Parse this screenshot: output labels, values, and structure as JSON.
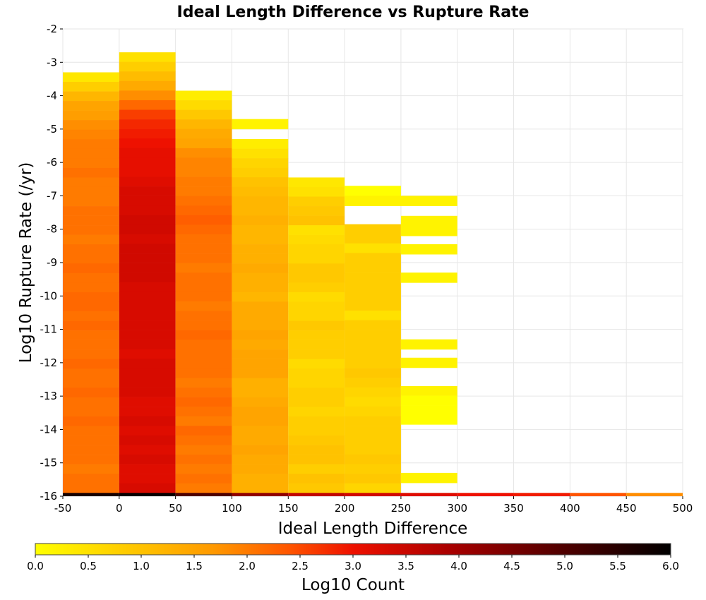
{
  "chart_data": {
    "type": "heatmap",
    "title": "Ideal Length Difference vs Rupture Rate",
    "xlabel": "Ideal Length Difference",
    "ylabel": "Log10 Rupture Rate (/yr)",
    "xlim": [
      -50,
      500
    ],
    "ylim": [
      -16,
      -2
    ],
    "x_ticks": [
      "-50",
      "0",
      "50",
      "100",
      "150",
      "200",
      "250",
      "300",
      "350",
      "400",
      "450",
      "500"
    ],
    "y_ticks": [
      "-2",
      "-3",
      "-4",
      "-5",
      "-6",
      "-7",
      "-8",
      "-9",
      "-10",
      "-11",
      "-12",
      "-13",
      "-14",
      "-15",
      "-16"
    ],
    "x_bin_width": 50,
    "y_bin_height": 0.2857,
    "grid": true,
    "colorbar": {
      "label": "Log10 Count",
      "range": [
        0.0,
        6.0
      ],
      "ticks": [
        "0.0",
        "0.5",
        "1.0",
        "1.5",
        "2.0",
        "2.5",
        "3.0",
        "3.5",
        "4.0",
        "4.5",
        "5.0",
        "5.5",
        "6.0"
      ],
      "colormap": [
        "#ffff00",
        "#ffcc00",
        "#ff9900",
        "#ff5500",
        "#ee1100",
        "#aa0000",
        "#550000",
        "#000000"
      ]
    },
    "columns": [
      {
        "x_start": -50,
        "x_end": 0,
        "top": -3.3,
        "bottom": -15.9,
        "pattern": [
          0.4,
          0.8,
          1.2,
          1.5,
          1.6,
          1.8,
          1.9,
          2.0,
          2.0,
          2.0,
          2.1,
          2.0,
          2.0,
          2.0,
          2.1,
          2.1,
          2.1,
          2.0,
          2.1,
          2.1,
          2.2,
          2.1,
          2.1,
          2.2,
          2.2,
          2.1,
          2.2,
          2.1,
          2.1,
          2.1,
          2.2,
          2.1,
          2.1,
          2.2,
          2.1,
          2.1,
          2.2,
          2.1,
          2.1,
          2.1,
          2.1,
          2.0,
          2.1,
          2.1
        ]
      },
      {
        "x_start": 0,
        "x_end": 50,
        "top": -2.7,
        "bottom": -15.9,
        "pattern": [
          0.5,
          0.8,
          1.1,
          1.4,
          1.8,
          2.2,
          2.6,
          2.8,
          2.9,
          3.0,
          3.1,
          3.1,
          3.1,
          3.2,
          3.3,
          3.3,
          3.3,
          3.4,
          3.4,
          3.3,
          3.4,
          3.4,
          3.4,
          3.4,
          3.3,
          3.3,
          3.3,
          3.3,
          3.3,
          3.3,
          3.3,
          3.2,
          3.3,
          3.3,
          3.3,
          3.3,
          3.2,
          3.2,
          3.3,
          3.2,
          3.3,
          3.2,
          3.3,
          3.2,
          3.2,
          3.3
        ]
      },
      {
        "x_start": 50,
        "x_end": 100,
        "top": -3.85,
        "bottom": -15.9,
        "pattern": [
          0.3,
          0.6,
          0.9,
          1.2,
          1.4,
          1.5,
          1.8,
          1.9,
          1.9,
          2.0,
          2.0,
          2.1,
          2.2,
          2.3,
          2.2,
          2.1,
          2.1,
          2.1,
          2.0,
          2.1,
          2.1,
          2.1,
          2.0,
          2.1,
          2.1,
          2.2,
          2.1,
          2.1,
          2.1,
          2.1,
          2.0,
          2.1,
          2.2,
          2.1,
          2.0,
          2.2,
          2.1,
          2.0,
          2.1,
          2.0,
          2.1,
          2.0
        ]
      },
      {
        "x_start": 100,
        "x_end": 150,
        "top": -5.3,
        "bottom": -15.9,
        "pattern": [
          0.3,
          0.5,
          0.7,
          0.8,
          1.0,
          1.1,
          1.2,
          1.2,
          1.3,
          1.2,
          1.2,
          1.3,
          1.3,
          1.4,
          1.3,
          1.3,
          1.2,
          1.4,
          1.4,
          1.4,
          1.5,
          1.4,
          1.5,
          1.5,
          1.5,
          1.3,
          1.3,
          1.4,
          1.5,
          1.5,
          1.4,
          1.4,
          1.5,
          1.4,
          1.4,
          1.3,
          1.3
        ]
      },
      {
        "x_start": 150,
        "x_end": 200,
        "top": -6.45,
        "bottom": -15.9,
        "pattern": [
          0.4,
          0.5,
          0.8,
          0.9,
          1.0,
          0.5,
          0.6,
          0.7,
          0.7,
          0.9,
          0.9,
          0.8,
          0.6,
          0.7,
          0.7,
          0.9,
          0.8,
          0.8,
          0.8,
          0.6,
          0.7,
          0.7,
          0.8,
          0.8,
          0.7,
          0.8,
          0.8,
          0.9,
          1.0,
          1.0,
          0.8,
          1.0,
          0.9
        ]
      },
      {
        "x_start": 200,
        "x_end": 250,
        "top": -7.85,
        "bottom": -15.9,
        "pattern": [
          0.8,
          0.8,
          0.5,
          0.8,
          0.8,
          0.8,
          0.8,
          0.8,
          0.8,
          0.5,
          0.8,
          0.8,
          0.8,
          0.8,
          0.8,
          0.9,
          0.8,
          0.7,
          0.6,
          0.7,
          0.8,
          0.8,
          0.8,
          0.8,
          0.9,
          0.8,
          0.9,
          0.7
        ]
      },
      {
        "x_start": 100,
        "x_end": 150,
        "top": -4.7,
        "bottom": -5.0,
        "pattern": [
          0.2
        ]
      },
      {
        "x_start": 200,
        "x_end": 250,
        "top": -6.7,
        "bottom": -7.0,
        "pattern": [
          0.0
        ]
      },
      {
        "x_start": 200,
        "x_end": 300,
        "top": -7.0,
        "bottom": -7.3,
        "pattern": [
          0.2
        ]
      },
      {
        "x_start": 250,
        "x_end": 300,
        "top": -7.6,
        "bottom": -8.2,
        "pattern": [
          0.2,
          0.2
        ]
      },
      {
        "x_start": 250,
        "x_end": 300,
        "top": -8.45,
        "bottom": -8.75,
        "pattern": [
          0.2
        ]
      },
      {
        "x_start": 250,
        "x_end": 300,
        "top": -9.3,
        "bottom": -9.6,
        "pattern": [
          0.2
        ]
      },
      {
        "x_start": 250,
        "x_end": 300,
        "top": -11.3,
        "bottom": -11.6,
        "pattern": [
          0.2
        ]
      },
      {
        "x_start": 250,
        "x_end": 300,
        "top": -11.85,
        "bottom": -12.15,
        "pattern": [
          0.2
        ]
      },
      {
        "x_start": 250,
        "x_end": 300,
        "top": -12.7,
        "bottom": -13.85,
        "pattern": [
          0.2,
          0.0,
          0.0,
          0.0
        ]
      },
      {
        "x_start": 250,
        "x_end": 300,
        "top": -15.3,
        "bottom": -15.6,
        "pattern": [
          0.2
        ]
      }
    ],
    "bottom_row": {
      "y_top": -15.9,
      "y_bottom": -16.0,
      "x_bins": [
        -50,
        0,
        50,
        100,
        150,
        200,
        250,
        300,
        350,
        400,
        450
      ],
      "values": [
        5.7,
        5.9,
        5.0,
        4.2,
        3.6,
        3.4,
        3.2,
        3.0,
        2.9,
        2.4,
        1.8
      ]
    }
  }
}
